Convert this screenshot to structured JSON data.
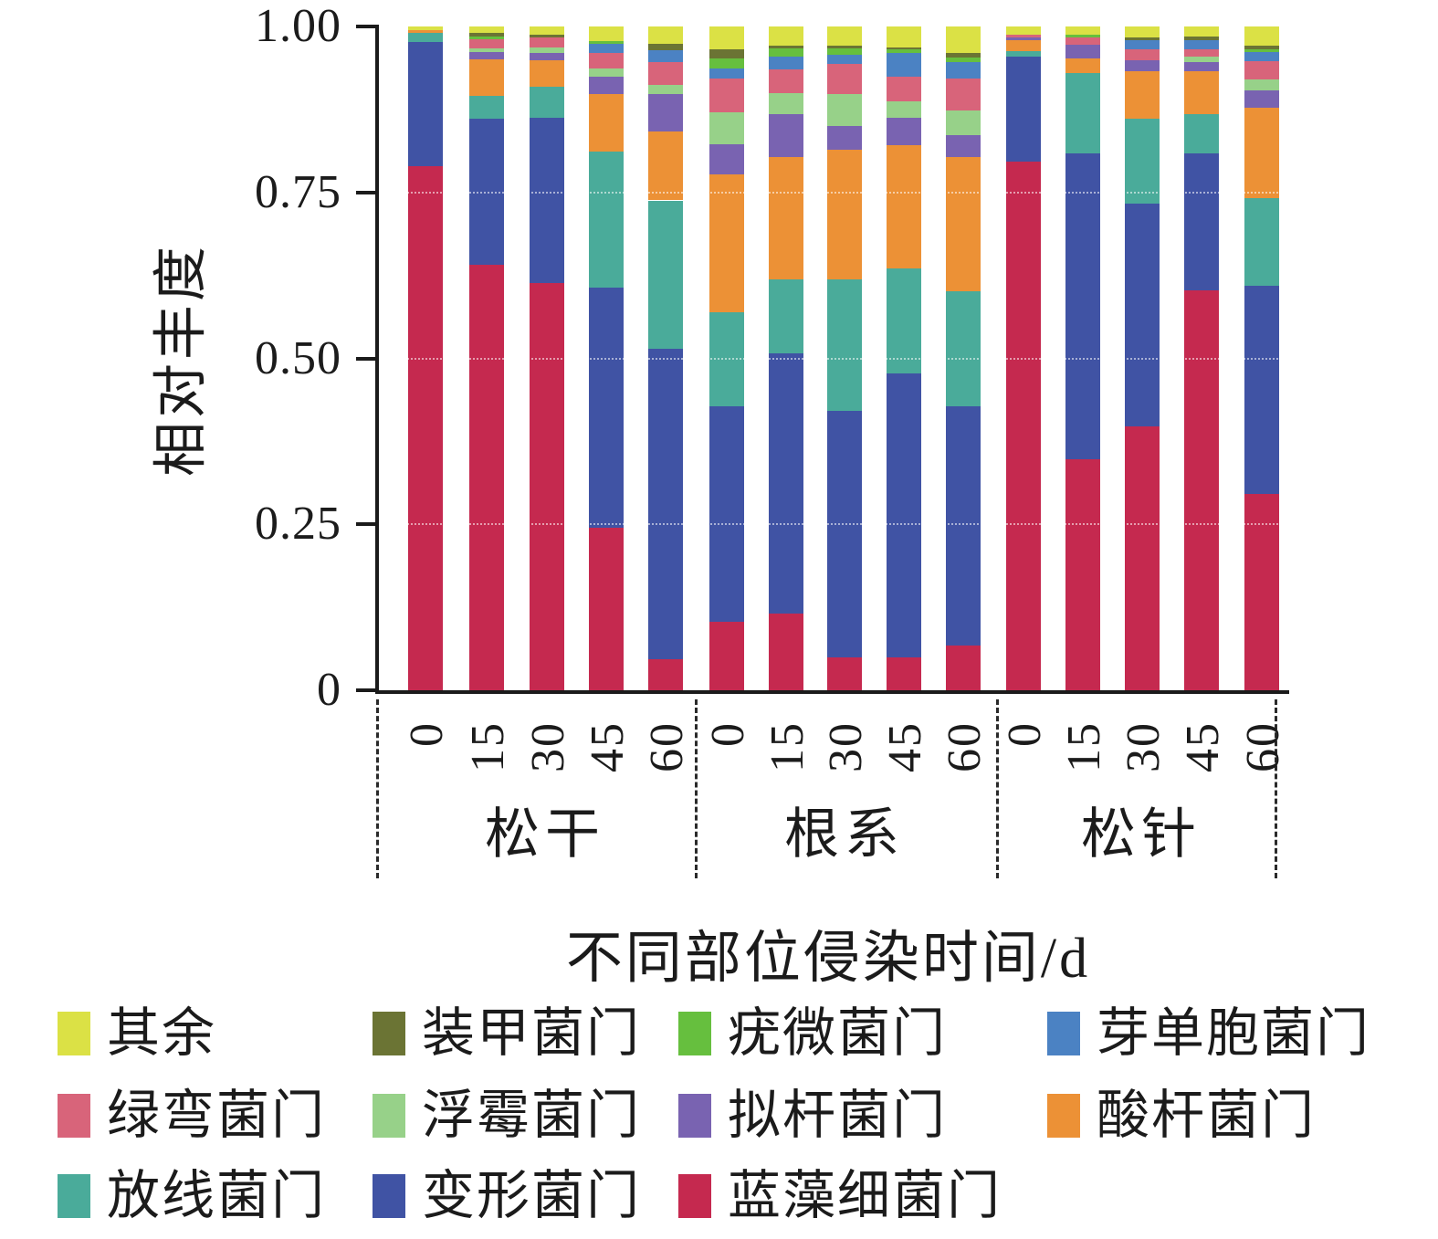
{
  "chart_data": {
    "type": "bar",
    "subtype": "stacked_vertical",
    "title": "",
    "ylabel": "相对丰度",
    "xlabel": "不同部位侵染时间/d",
    "ylim": [
      0,
      1
    ],
    "grid": "faint white dotted lines at 0.25 / 0.50 / 0.75",
    "legend_position": "bottom",
    "yticks": [
      {
        "value": 1.0,
        "label": "1.00"
      },
      {
        "value": 0.75,
        "label": "0.75"
      },
      {
        "value": 0.5,
        "label": "0.50"
      },
      {
        "value": 0.25,
        "label": "0.25"
      },
      {
        "value": 0.0,
        "label": "0"
      }
    ],
    "groups": [
      {
        "label": "松干",
        "ticks": [
          "0",
          "15",
          "30",
          "45",
          "60"
        ]
      },
      {
        "label": "根系",
        "ticks": [
          "0",
          "15",
          "30",
          "45",
          "60"
        ]
      },
      {
        "label": "松针",
        "ticks": [
          "0",
          "15",
          "30",
          "45",
          "60"
        ]
      }
    ],
    "categories": [
      "松干-0",
      "松干-15",
      "松干-30",
      "松干-45",
      "松干-60",
      "根系-0",
      "根系-15",
      "根系-30",
      "根系-45",
      "根系-60",
      "松针-0",
      "松针-15",
      "松针-30",
      "松针-45",
      "松针-60"
    ],
    "stack_order_note": "series listed bottom-to-top of each stacked bar; values are relative abundance fractions summing to 1.0",
    "series": [
      {
        "name": "蓝藻细菌门",
        "color": "#c5294f",
        "values": [
          0.79,
          0.641,
          0.613,
          0.245,
          0.047,
          0.103,
          0.116,
          0.05,
          0.05,
          0.068,
          0.797,
          0.348,
          0.397,
          0.602,
          0.296
        ]
      },
      {
        "name": "变形菌门",
        "color": "#4053a4",
        "values": [
          0.186,
          0.22,
          0.249,
          0.362,
          0.468,
          0.325,
          0.391,
          0.371,
          0.427,
          0.36,
          0.158,
          0.461,
          0.336,
          0.207,
          0.314
        ]
      },
      {
        "name": "放线菌门",
        "color": "#4aab9a",
        "values": [
          0.014,
          0.034,
          0.047,
          0.205,
          0.223,
          0.142,
          0.112,
          0.198,
          0.158,
          0.173,
          0.008,
          0.121,
          0.128,
          0.059,
          0.132
        ]
      },
      {
        "name": "酸杆菌门",
        "color": "#ec9136",
        "values": [
          0.004,
          0.056,
          0.04,
          0.086,
          0.104,
          0.207,
          0.185,
          0.196,
          0.186,
          0.203,
          0.016,
          0.022,
          0.072,
          0.065,
          0.135
        ]
      },
      {
        "name": "拟杆菌门",
        "color": "#7963b1",
        "values": [
          0.0,
          0.011,
          0.011,
          0.026,
          0.056,
          0.046,
          0.064,
          0.035,
          0.041,
          0.033,
          0.004,
          0.02,
          0.016,
          0.014,
          0.027
        ]
      },
      {
        "name": "浮霉菌门",
        "color": "#97d189",
        "values": [
          0.0,
          0.005,
          0.009,
          0.013,
          0.014,
          0.048,
          0.032,
          0.048,
          0.025,
          0.036,
          0.0,
          0.0,
          0.0,
          0.007,
          0.016
        ]
      },
      {
        "name": "绿弯菌门",
        "color": "#d8647a",
        "values": [
          0.0,
          0.014,
          0.014,
          0.023,
          0.034,
          0.05,
          0.035,
          0.046,
          0.037,
          0.048,
          0.005,
          0.011,
          0.016,
          0.011,
          0.028
        ]
      },
      {
        "name": "芽单胞菌门",
        "color": "#4b82c3",
        "values": [
          0.0,
          0.0,
          0.0,
          0.014,
          0.018,
          0.016,
          0.02,
          0.013,
          0.036,
          0.025,
          0.0,
          0.0,
          0.014,
          0.015,
          0.014
        ]
      },
      {
        "name": "疣微菌门",
        "color": "#66bf3e",
        "values": [
          0.0,
          0.004,
          0.0,
          0.004,
          0.0,
          0.015,
          0.012,
          0.01,
          0.005,
          0.007,
          0.0,
          0.005,
          0.0,
          0.0,
          0.004
        ]
      },
      {
        "name": "装甲菌门",
        "color": "#6b7434",
        "values": [
          0.0,
          0.005,
          0.005,
          0.0,
          0.01,
          0.014,
          0.004,
          0.004,
          0.004,
          0.007,
          0.0,
          0.0,
          0.004,
          0.005,
          0.005
        ]
      },
      {
        "name": "其余",
        "color": "#dbe145",
        "values": [
          0.006,
          0.01,
          0.012,
          0.022,
          0.026,
          0.034,
          0.029,
          0.029,
          0.031,
          0.04,
          0.012,
          0.012,
          0.017,
          0.015,
          0.029
        ]
      }
    ],
    "legend_rows": [
      [
        "其余",
        "装甲菌门",
        "疣微菌门",
        "芽单胞菌门"
      ],
      [
        "绿弯菌门",
        "浮霉菌门",
        "拟杆菌门",
        "酸杆菌门"
      ],
      [
        "放线菌门",
        "变形菌门",
        "蓝藻细菌门"
      ]
    ]
  },
  "layout_colors": {
    "axis": "#1b1b1b",
    "background": "#ffffff"
  }
}
